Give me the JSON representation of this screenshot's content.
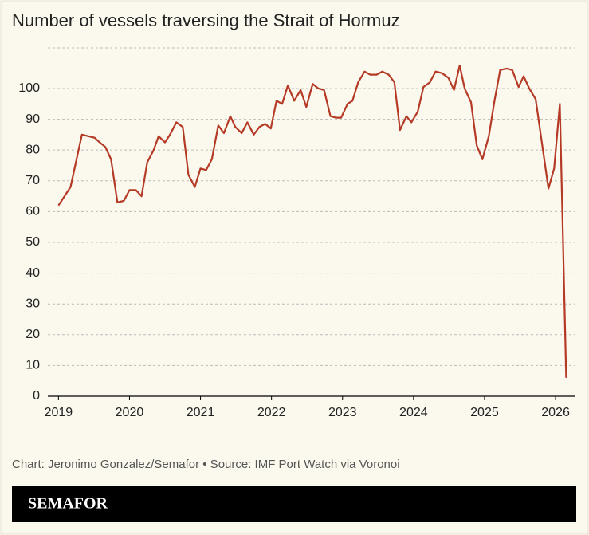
{
  "chart_data": {
    "type": "line",
    "title": "Number of vessels traversing the Strait of Hormuz",
    "source": "Chart: Jeronimo Gonzalez/Semafor • Source: IMF Port Watch via Voronoi",
    "logo": "SEMAFOR",
    "color": "#b53a26",
    "x": [
      2019.0,
      2019.17,
      2019.33,
      2019.42,
      2019.51,
      2019.58,
      2019.66,
      2019.74,
      2019.83,
      2019.92,
      2020.0,
      2020.09,
      2020.17,
      2020.25,
      2020.34,
      2020.41,
      2020.5,
      2020.57,
      2020.66,
      2020.75,
      2020.83,
      2020.92,
      2021.0,
      2021.08,
      2021.16,
      2021.25,
      2021.33,
      2021.42,
      2021.49,
      2021.58,
      2021.66,
      2021.75,
      2021.83,
      2021.91,
      2021.99,
      2022.07,
      2022.15,
      2022.23,
      2022.32,
      2022.41,
      2022.49,
      2022.58,
      2022.66,
      2022.74,
      2022.83,
      2022.91,
      2022.98,
      2023.07,
      2023.14,
      2023.22,
      2023.31,
      2023.39,
      2023.48,
      2023.56,
      2023.65,
      2023.73,
      2023.81,
      2023.9,
      2023.97,
      2024.06,
      2024.14,
      2024.23,
      2024.31,
      2024.4,
      2024.49,
      2024.57,
      2024.65,
      2024.72,
      2024.81,
      2024.89,
      2024.97,
      2025.06,
      2025.14,
      2025.22,
      2025.31,
      2025.39,
      2025.48,
      2025.55,
      2025.63,
      2025.72,
      2025.81,
      2025.9,
      2025.98,
      2026.06,
      2026.15
    ],
    "values": [
      62,
      68,
      85,
      84.5,
      84,
      82.5,
      81,
      77,
      63,
      63.5,
      67,
      67,
      65,
      76,
      80,
      84.5,
      82.5,
      85,
      89,
      87.5,
      72,
      68,
      74,
      73.5,
      77,
      88,
      85.5,
      91,
      87.5,
      85.5,
      89,
      85,
      87.5,
      88.5,
      87,
      96,
      95,
      101,
      96,
      99.5,
      94,
      101.5,
      100,
      99.5,
      91,
      90.5,
      90.5,
      95,
      96,
      102,
      105.5,
      104.5,
      104.5,
      105.5,
      104.5,
      102,
      86.5,
      91,
      89,
      92.5,
      100.5,
      102,
      105.5,
      105,
      103.5,
      99.5,
      107.5,
      100,
      95.5,
      81.5,
      77,
      84.5,
      96,
      106,
      106.5,
      106,
      100.5,
      104,
      100,
      96.5,
      82,
      67.5,
      74,
      95,
      6
    ],
    "xlim": [
      2018.85,
      2026.28
    ],
    "xticks": [
      2019,
      2020,
      2021,
      2022,
      2023,
      2024,
      2025,
      2026
    ],
    "ylim": [
      0,
      113
    ],
    "yticks": [
      0,
      10,
      20,
      30,
      40,
      50,
      60,
      70,
      80,
      90,
      100
    ],
    "grid": true
  }
}
